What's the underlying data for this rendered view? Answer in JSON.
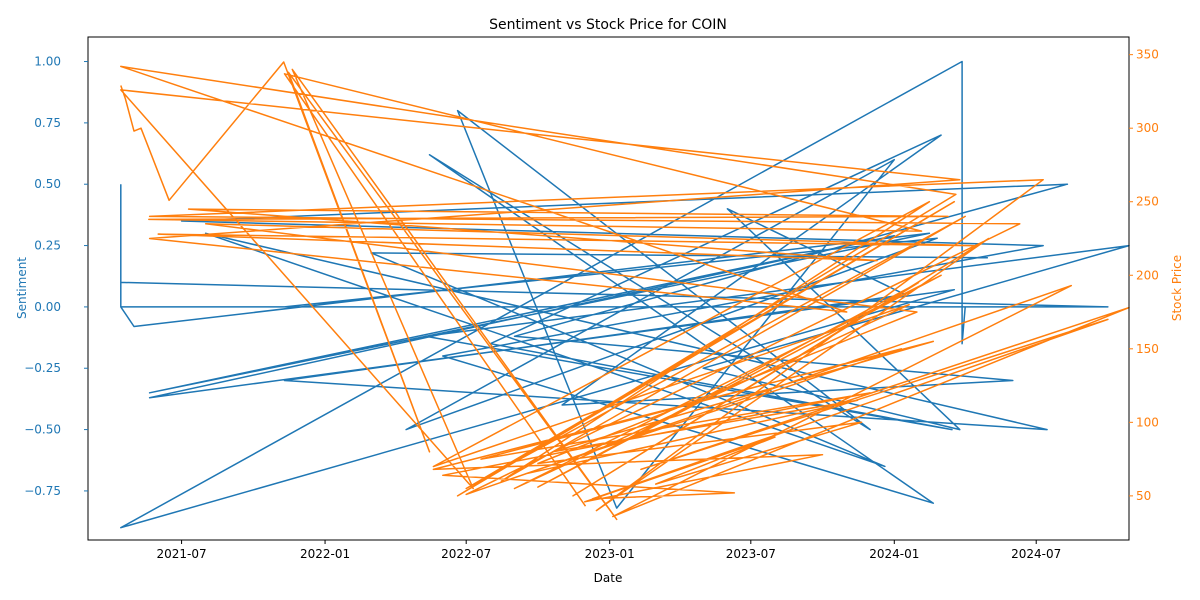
{
  "chart_data": {
    "type": "line",
    "title": "Sentiment vs Stock Price for COIN",
    "xlabel": "Date",
    "ylabel_left": "Sentiment",
    "ylabel_right": "Stock Price",
    "x_ticks": [
      "2021-07",
      "2022-01",
      "2022-07",
      "2023-01",
      "2023-07",
      "2024-01",
      "2024-07"
    ],
    "x_range": [
      "2021-03-03",
      "2024-10-28"
    ],
    "ylim_left": [
      -0.95,
      1.1
    ],
    "ylim_right": [
      20,
      362
    ],
    "yticks_left": [
      "−0.75",
      "−0.50",
      "−0.25",
      "0.00",
      "0.25",
      "0.50",
      "0.75",
      "1.00"
    ],
    "yticks_right": [
      "50",
      "100",
      "150",
      "200",
      "250",
      "300",
      "350"
    ],
    "grid": false,
    "legend": "none",
    "series": [
      {
        "axis": "left",
        "color": "#1f77b4",
        "points": [
          [
            "2021-04-14",
            0.5
          ],
          [
            "2021-04-14",
            0.0
          ],
          [
            "2021-04-14",
            0.1
          ],
          [
            "2024-10-01",
            0.0
          ],
          [
            "2021-04-14",
            0.0
          ],
          [
            "2021-05-01",
            -0.08
          ],
          [
            "2024-02-15",
            0.3
          ],
          [
            "2021-05-21",
            -0.35
          ],
          [
            "2024-01-01",
            0.29
          ],
          [
            "2021-05-21",
            -0.37
          ],
          [
            "2024-03-18",
            0.07
          ],
          [
            "2021-04-14",
            -0.9
          ],
          [
            "2024-03-28",
            1.0
          ],
          [
            "2024-03-28",
            -0.15
          ],
          [
            "2024-04-01",
            0.0
          ],
          [
            "2021-04-14",
            0.0
          ],
          [
            "2024-03-20",
            0.0
          ],
          [
            "2021-11-10",
            0.0
          ],
          [
            "2024-02-25",
            0.28
          ],
          [
            "2022-04-15",
            -0.5
          ],
          [
            "2024-01-01",
            0.6
          ],
          [
            "2023-01-10",
            -0.82
          ],
          [
            "2022-06-20",
            0.8
          ],
          [
            "2023-12-01",
            -0.5
          ],
          [
            "2022-05-15",
            0.62
          ],
          [
            "2024-02-20",
            -0.8
          ],
          [
            "2022-06-01",
            -0.2
          ],
          [
            "2024-07-10",
            0.25
          ],
          [
            "2021-07-01",
            0.35
          ],
          [
            "2024-08-10",
            0.5
          ],
          [
            "2022-09-01",
            -0.12
          ],
          [
            "2024-06-01",
            -0.3
          ],
          [
            "2022-11-01",
            -0.4
          ],
          [
            "2024-03-01",
            0.7
          ],
          [
            "2022-08-01",
            -0.15
          ],
          [
            "2024-03-15",
            -0.5
          ],
          [
            "2022-05-10",
            -0.12
          ],
          [
            "2024-10-28",
            0.25
          ],
          [
            "2023-05-01",
            -0.25
          ],
          [
            "2024-03-25",
            -0.5
          ],
          [
            "2023-06-01",
            0.4
          ],
          [
            "2024-01-15",
            0.05
          ],
          [
            "2021-11-10",
            -0.3
          ],
          [
            "2024-07-15",
            -0.5
          ],
          [
            "2021-08-01",
            0.3
          ],
          [
            "2023-12-20",
            -0.65
          ],
          [
            "2022-03-01",
            0.22
          ],
          [
            "2024-04-30",
            0.2
          ]
        ]
      },
      {
        "axis": "right",
        "color": "#ff7f0e",
        "points": [
          [
            "2021-04-14",
            329
          ],
          [
            "2021-04-20",
            320
          ],
          [
            "2021-05-01",
            298
          ],
          [
            "2021-05-10",
            300
          ],
          [
            "2021-06-15",
            251
          ],
          [
            "2021-11-09",
            345
          ],
          [
            "2022-05-15",
            80
          ],
          [
            "2021-11-15",
            338
          ],
          [
            "2023-01-10",
            34
          ],
          [
            "2021-11-20",
            340
          ],
          [
            "2022-07-10",
            55
          ],
          [
            "2021-04-14",
            326
          ],
          [
            "2024-03-25",
            265
          ],
          [
            "2021-05-21",
            225
          ],
          [
            "2023-11-01",
            175
          ],
          [
            "2021-04-14",
            342
          ],
          [
            "2024-03-20",
            255
          ],
          [
            "2022-06-20",
            50
          ],
          [
            "2024-03-18",
            250
          ],
          [
            "2022-07-01",
            55
          ],
          [
            "2024-04-01",
            240
          ],
          [
            "2022-08-15",
            60
          ],
          [
            "2024-02-15",
            250
          ],
          [
            "2022-05-20",
            70
          ],
          [
            "2024-01-20",
            180
          ],
          [
            "2022-09-01",
            55
          ],
          [
            "2024-03-01",
            200
          ],
          [
            "2022-10-01",
            56
          ],
          [
            "2024-02-01",
            195
          ],
          [
            "2022-11-15",
            50
          ],
          [
            "2024-05-01",
            225
          ],
          [
            "2022-12-15",
            40
          ],
          [
            "2024-07-10",
            265
          ],
          [
            "2021-05-21",
            240
          ],
          [
            "2024-06-10",
            235
          ],
          [
            "2022-07-01",
            51
          ],
          [
            "2024-08-15",
            193
          ],
          [
            "2023-01-05",
            36
          ],
          [
            "2024-10-28",
            178
          ],
          [
            "2023-02-10",
            68
          ],
          [
            "2024-10-01",
            170
          ],
          [
            "2022-12-10",
            48
          ],
          [
            "2023-06-10",
            52
          ],
          [
            "2022-06-01",
            64
          ],
          [
            "2023-12-01",
            120
          ],
          [
            "2022-07-20",
            75
          ],
          [
            "2024-01-10",
            150
          ],
          [
            "2022-09-15",
            65
          ],
          [
            "2023-11-15",
            115
          ],
          [
            "2022-10-20",
            80
          ],
          [
            "2024-02-20",
            155
          ],
          [
            "2022-05-20",
            68
          ],
          [
            "2023-10-01",
            78
          ],
          [
            "2022-11-30",
            46
          ],
          [
            "2023-08-01",
            90
          ],
          [
            "2023-03-01",
            58
          ],
          [
            "2023-11-20",
            100
          ],
          [
            "2022-10-01",
            72
          ],
          [
            "2024-01-30",
            175
          ],
          [
            "2021-08-01",
            235
          ],
          [
            "2024-04-15",
            220
          ],
          [
            "2021-06-01",
            228
          ],
          [
            "2023-12-10",
            210
          ],
          [
            "2021-07-10",
            245
          ],
          [
            "2024-03-10",
            240
          ],
          [
            "2021-05-20",
            238
          ],
          [
            "2024-02-05",
            230
          ],
          [
            "2021-11-10",
            337
          ],
          [
            "2022-12-01",
            43
          ]
        ]
      }
    ]
  }
}
